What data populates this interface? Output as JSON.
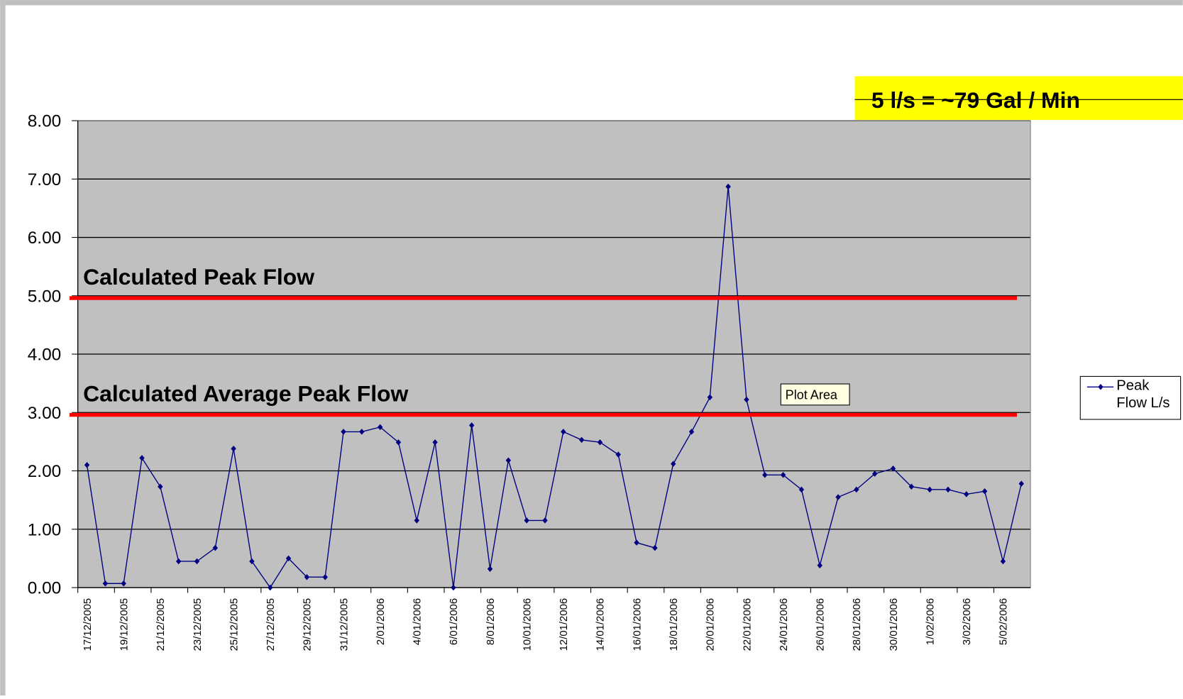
{
  "chart_data": {
    "type": "line",
    "categories": [
      "17/12/2005",
      null,
      "19/12/2005",
      null,
      "21/12/2005",
      null,
      "23/12/2005",
      null,
      "25/12/2005",
      null,
      "27/12/2005",
      null,
      "29/12/2005",
      null,
      "31/12/2005",
      null,
      "2/01/2006",
      null,
      "4/01/2006",
      null,
      "6/01/2006",
      null,
      "8/01/2006",
      null,
      "10/01/2006",
      null,
      "12/01/2006",
      null,
      "14/01/2006",
      null,
      "16/01/2006",
      null,
      "18/01/2006",
      null,
      "20/01/2006",
      null,
      "22/01/2006",
      null,
      "24/01/2006",
      null,
      "26/01/2006",
      null,
      "28/01/2006",
      null,
      "30/01/2006",
      null,
      "1/02/2006",
      null,
      "3/02/2006",
      null,
      "5/02/2006",
      null
    ],
    "series": [
      {
        "name": "Peak Flow L/s",
        "color": "#000080",
        "values": [
          2.1,
          0.07,
          0.07,
          2.22,
          1.73,
          0.45,
          0.45,
          0.68,
          2.38,
          0.45,
          0.0,
          0.5,
          0.18,
          0.18,
          2.67,
          2.67,
          2.75,
          2.49,
          1.15,
          2.49,
          0.0,
          2.78,
          0.32,
          2.18,
          1.15,
          1.15,
          2.67,
          2.53,
          2.49,
          2.28,
          0.77,
          0.68,
          2.12,
          2.67,
          3.26,
          6.87,
          3.22,
          1.93,
          1.93,
          1.68,
          0.38,
          1.55,
          1.68,
          1.95,
          2.04,
          1.73,
          1.68,
          1.68,
          1.6,
          1.65,
          0.45,
          1.78
        ]
      }
    ],
    "ylim": [
      0,
      8
    ],
    "yticks": [
      {
        "value": 0,
        "label": "0.00"
      },
      {
        "value": 1,
        "label": "1.00"
      },
      {
        "value": 2,
        "label": "2.00"
      },
      {
        "value": 3,
        "label": "3.00"
      },
      {
        "value": 4,
        "label": "4.00"
      },
      {
        "value": 5,
        "label": "5.00"
      },
      {
        "value": 6,
        "label": "6.00"
      },
      {
        "value": 7,
        "label": "7.00"
      },
      {
        "value": 8,
        "label": "8.00"
      }
    ],
    "grid": true,
    "plot_color": "#c0c0c0",
    "reference_lines": [
      {
        "label": "Calculated Peak Flow",
        "value": 4.96,
        "color": "#ff0000"
      },
      {
        "label": "Calculated Average Peak Flow",
        "value": 2.96,
        "color": "#ff0000"
      }
    ],
    "note": "5 l/s = ~79 Gal / Min",
    "tooltip": "Plot Area",
    "legend": "right"
  }
}
